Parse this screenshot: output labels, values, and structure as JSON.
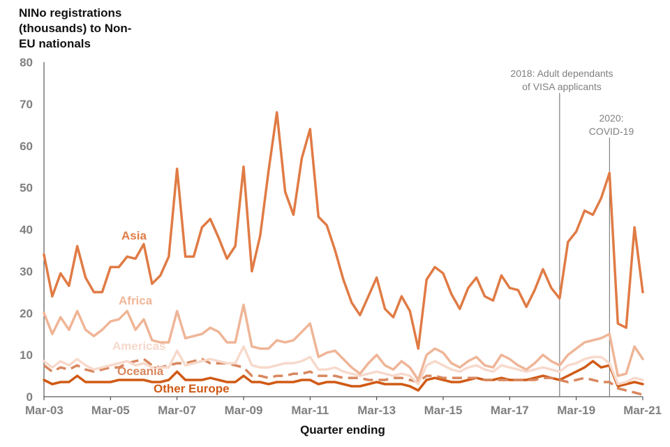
{
  "chart_data": {
    "type": "line",
    "title_lines": [
      "NINo registrations",
      "(thousands) to Non-",
      "EU nationals"
    ],
    "xlabel": "Quarter ending",
    "ylim": [
      0,
      80
    ],
    "yticks": [
      0,
      10,
      20,
      30,
      40,
      50,
      60,
      70,
      80
    ],
    "xtick_labels": [
      "Mar-03",
      "Mar-05",
      "Mar-07",
      "Mar-09",
      "Mar-11",
      "Mar-13",
      "Mar-15",
      "Mar-17",
      "Mar-19",
      "Mar-21"
    ],
    "x_start": "Mar-03",
    "x_end": "Mar-21",
    "series": [
      {
        "name": "Asia",
        "color": "#e07b45",
        "dash": false,
        "values": [
          34,
          24,
          29.5,
          26.5,
          36,
          28.5,
          25,
          25,
          31,
          31,
          33.5,
          33,
          36.5,
          27,
          29,
          33.5,
          54.5,
          33.5,
          33.5,
          40.5,
          42.5,
          38,
          33,
          36,
          55,
          30,
          38.5,
          54,
          68,
          49,
          43.5,
          57,
          64,
          43,
          41,
          35,
          28,
          22.5,
          19.5,
          24,
          28.5,
          21,
          19,
          24,
          20.5,
          11.5,
          28,
          31,
          29.5,
          24.5,
          21,
          26,
          28.5,
          24,
          23,
          29,
          26,
          25.5,
          21.5,
          25.5,
          30.5,
          26,
          23.5,
          37,
          39.5,
          44.5,
          43.5,
          47.5,
          53.5,
          17.5,
          16.5,
          40.5,
          25
        ]
      },
      {
        "name": "Africa",
        "color": "#efb597",
        "dash": false,
        "values": [
          20,
          15,
          19,
          16,
          20.5,
          16,
          14.5,
          16,
          18,
          18.5,
          20.5,
          16,
          18.5,
          13.5,
          13,
          13,
          20.5,
          14,
          14.5,
          15,
          16.5,
          15.5,
          13,
          13,
          22,
          12,
          11.5,
          11.5,
          13.5,
          13,
          13.5,
          15.5,
          17.5,
          9.5,
          10.5,
          11,
          9,
          7,
          5.5,
          8,
          10,
          7.5,
          6.5,
          8.5,
          7,
          4,
          10,
          11.5,
          10.5,
          8,
          7,
          8.5,
          9.5,
          7.5,
          7,
          10,
          9,
          7.5,
          6.5,
          8,
          10,
          8.5,
          7.5,
          10,
          11.5,
          13,
          13.5,
          14,
          15,
          5,
          5.5,
          12,
          9
        ]
      },
      {
        "name": "Americas",
        "color": "#f7d9cb",
        "dash": false,
        "values": [
          8.5,
          7,
          8.5,
          7.5,
          9,
          7.5,
          6.5,
          7,
          7.5,
          8,
          8.5,
          7.5,
          8,
          7,
          7,
          7,
          11,
          7.5,
          8,
          8.5,
          9,
          8.5,
          8,
          8,
          12,
          7.5,
          7,
          7,
          7.5,
          8,
          8,
          8.5,
          9.5,
          6.5,
          6.5,
          7,
          6,
          5.5,
          5,
          5.5,
          6,
          5.5,
          5,
          5.5,
          5,
          3,
          7.5,
          8.5,
          7.5,
          6.5,
          6,
          7,
          7.5,
          6.5,
          6,
          7.5,
          7,
          6.5,
          6,
          6.5,
          7,
          6.5,
          6,
          7.5,
          8,
          9,
          9.5,
          9.5,
          8,
          3,
          3.5,
          4.5,
          4
        ]
      },
      {
        "name": "Oceania",
        "color": "#d8875e",
        "dash": true,
        "values": [
          7.5,
          6,
          7,
          6.5,
          7.5,
          6.5,
          6,
          6.5,
          7,
          7,
          8,
          8.5,
          9,
          7.5,
          7,
          7.5,
          8,
          8,
          8.5,
          9,
          8,
          8,
          8,
          7.5,
          7,
          5,
          5,
          4.5,
          5,
          5,
          5.5,
          5.5,
          6,
          5,
          5,
          5,
          4.5,
          4.5,
          4.5,
          4,
          4,
          4,
          4.5,
          4.5,
          4,
          3.5,
          5,
          5,
          4.5,
          4.5,
          4.5,
          4.5,
          4.5,
          4,
          4,
          4,
          4,
          4,
          4,
          4,
          4.5,
          4.5,
          4,
          3.5,
          4,
          4.5,
          4,
          3.5,
          3.5,
          2,
          1.5,
          1,
          0.5
        ]
      },
      {
        "name": "Other Europe",
        "color": "#d05a15",
        "dash": false,
        "values": [
          4,
          3,
          3.5,
          3.5,
          5,
          3.5,
          3.5,
          3.5,
          3.5,
          4,
          4,
          4,
          4,
          3.5,
          3.5,
          4,
          6,
          4,
          4,
          4,
          4.5,
          4,
          3.5,
          3.5,
          5,
          3.5,
          3.5,
          3,
          3.5,
          3.5,
          3.5,
          4,
          4,
          3,
          3.5,
          3.5,
          3,
          2.5,
          2.5,
          3,
          3.5,
          3,
          3,
          3,
          2.5,
          1.5,
          4,
          4.5,
          4,
          3.5,
          3.5,
          4,
          4.5,
          4,
          4,
          4.5,
          4,
          4,
          4,
          4.5,
          5,
          4.5,
          4,
          5,
          6,
          7,
          8.5,
          7,
          7.5,
          2.5,
          3,
          3.5,
          3
        ]
      }
    ],
    "annotations": [
      {
        "lines": [
          "2018: Adult dependants",
          "of VISA applicants"
        ],
        "at_index": 62
      },
      {
        "lines": [
          "2020:",
          "COVID-19"
        ],
        "at_index": 68
      }
    ],
    "legend": "inline labels",
    "grid": false
  }
}
